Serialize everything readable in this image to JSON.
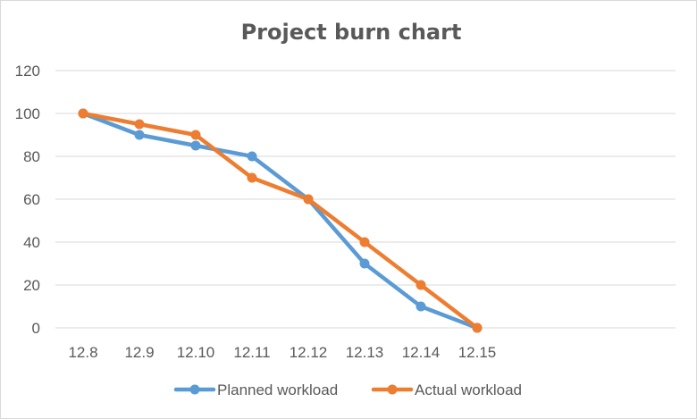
{
  "chart_data": {
    "type": "line",
    "title": "Project burn chart",
    "xlabel": "",
    "ylabel": "",
    "categories": [
      "12.8",
      "12.9",
      "12.10",
      "12.11",
      "12.12",
      "12.13",
      "12.14",
      "12.15"
    ],
    "ylim": [
      0,
      120
    ],
    "yticks": [
      0,
      20,
      40,
      60,
      80,
      100,
      120
    ],
    "grid": true,
    "legend_position": "bottom",
    "series": [
      {
        "name": "Planned workload",
        "color": "#5b9bd5",
        "values": [
          100,
          90,
          85,
          80,
          60,
          30,
          10,
          0
        ]
      },
      {
        "name": "Actual workload",
        "color": "#ed7d31",
        "values": [
          100,
          95,
          90,
          70,
          60,
          40,
          20,
          0
        ]
      }
    ]
  }
}
